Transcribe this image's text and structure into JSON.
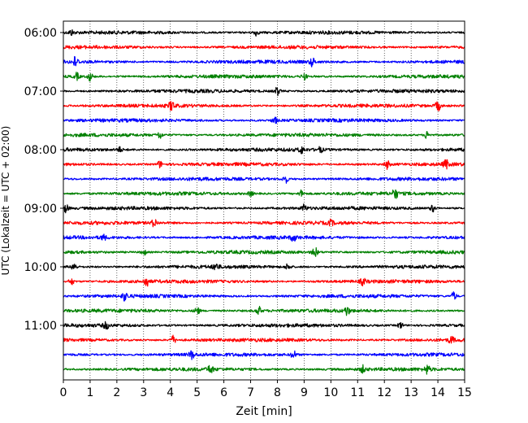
{
  "chart_data": {
    "type": "line",
    "title": "",
    "xlabel": "Zeit  [min]",
    "ylabel": "UTC (Lokalzeit = UTC + 02:00)",
    "xlim": [
      0,
      15
    ],
    "x_ticks": [
      "0",
      "1",
      "2",
      "3",
      "4",
      "5",
      "6",
      "7",
      "8",
      "9",
      "10",
      "11",
      "12",
      "13",
      "14",
      "15"
    ],
    "y_ticks": [
      "06:00",
      "07:00",
      "08:00",
      "09:00",
      "10:00",
      "11:00"
    ],
    "grid_x": true,
    "trace_interval_min": 15,
    "colors": [
      "#000000",
      "#ff0000",
      "#0000ff",
      "#008000"
    ],
    "traces": [
      {
        "start": "06:00",
        "color": "#000000",
        "events": [
          {
            "t": 0.3,
            "a": 3
          },
          {
            "t": 7.2,
            "a": 3.5
          }
        ]
      },
      {
        "start": "06:15",
        "color": "#ff0000",
        "events": []
      },
      {
        "start": "06:30",
        "color": "#0000ff",
        "events": [
          {
            "t": 0.45,
            "a": 6
          },
          {
            "t": 9.3,
            "a": 5
          }
        ]
      },
      {
        "start": "06:45",
        "color": "#008000",
        "events": [
          {
            "t": 0.5,
            "a": 4
          },
          {
            "t": 1.0,
            "a": 5
          },
          {
            "t": 9.0,
            "a": 4
          }
        ]
      },
      {
        "start": "07:00",
        "color": "#000000",
        "events": [
          {
            "t": 8.0,
            "a": 5
          }
        ]
      },
      {
        "start": "07:15",
        "color": "#ff0000",
        "events": [
          {
            "t": 4.05,
            "a": 6
          },
          {
            "t": 14.0,
            "a": 6
          }
        ]
      },
      {
        "start": "07:30",
        "color": "#0000ff",
        "events": [
          {
            "t": 7.9,
            "a": 4
          }
        ]
      },
      {
        "start": "07:45",
        "color": "#008000",
        "events": [
          {
            "t": 3.6,
            "a": 4
          },
          {
            "t": 13.6,
            "a": 5
          }
        ]
      },
      {
        "start": "08:00",
        "color": "#000000",
        "events": [
          {
            "t": 2.1,
            "a": 3
          },
          {
            "t": 8.9,
            "a": 4
          },
          {
            "t": 9.6,
            "a": 3
          }
        ]
      },
      {
        "start": "08:15",
        "color": "#ff0000",
        "events": [
          {
            "t": 3.6,
            "a": 4
          },
          {
            "t": 12.1,
            "a": 5
          },
          {
            "t": 14.3,
            "a": 5
          }
        ]
      },
      {
        "start": "08:30",
        "color": "#0000ff",
        "events": [
          {
            "t": 8.3,
            "a": 5
          }
        ]
      },
      {
        "start": "08:45",
        "color": "#008000",
        "events": [
          {
            "t": 7.0,
            "a": 3
          },
          {
            "t": 8.9,
            "a": 4
          },
          {
            "t": 12.4,
            "a": 6
          }
        ]
      },
      {
        "start": "09:00",
        "color": "#000000",
        "events": [
          {
            "t": 0.1,
            "a": 5
          },
          {
            "t": 9.0,
            "a": 4
          },
          {
            "t": 13.8,
            "a": 4
          }
        ]
      },
      {
        "start": "09:15",
        "color": "#ff0000",
        "events": [
          {
            "t": 3.4,
            "a": 5
          },
          {
            "t": 10.0,
            "a": 3
          }
        ]
      },
      {
        "start": "09:30",
        "color": "#0000ff",
        "events": [
          {
            "t": 1.5,
            "a": 3
          },
          {
            "t": 8.6,
            "a": 4
          }
        ]
      },
      {
        "start": "09:45",
        "color": "#008000",
        "events": [
          {
            "t": 3.0,
            "a": 4
          },
          {
            "t": 9.4,
            "a": 6
          }
        ]
      },
      {
        "start": "10:00",
        "color": "#000000",
        "events": [
          {
            "t": 0.4,
            "a": 5
          },
          {
            "t": 5.7,
            "a": 4
          },
          {
            "t": 8.4,
            "a": 4
          }
        ]
      },
      {
        "start": "10:15",
        "color": "#ff0000",
        "events": [
          {
            "t": 0.3,
            "a": 4
          },
          {
            "t": 3.1,
            "a": 6
          },
          {
            "t": 11.2,
            "a": 4
          }
        ]
      },
      {
        "start": "10:30",
        "color": "#0000ff",
        "events": [
          {
            "t": 2.3,
            "a": 5
          },
          {
            "t": 14.6,
            "a": 5
          }
        ]
      },
      {
        "start": "10:45",
        "color": "#008000",
        "events": [
          {
            "t": 5.0,
            "a": 5
          },
          {
            "t": 7.3,
            "a": 5
          },
          {
            "t": 10.6,
            "a": 5
          }
        ]
      },
      {
        "start": "11:00",
        "color": "#000000",
        "events": [
          {
            "t": 1.6,
            "a": 4
          },
          {
            "t": 12.6,
            "a": 4
          }
        ]
      },
      {
        "start": "11:15",
        "color": "#ff0000",
        "events": [
          {
            "t": 4.1,
            "a": 5
          },
          {
            "t": 14.5,
            "a": 4
          }
        ]
      },
      {
        "start": "11:30",
        "color": "#0000ff",
        "events": [
          {
            "t": 4.8,
            "a": 5
          },
          {
            "t": 8.6,
            "a": 5
          }
        ]
      },
      {
        "start": "11:45",
        "color": "#008000",
        "events": [
          {
            "t": 5.5,
            "a": 5
          },
          {
            "t": 11.2,
            "a": 4
          },
          {
            "t": 13.6,
            "a": 5
          }
        ]
      }
    ]
  }
}
